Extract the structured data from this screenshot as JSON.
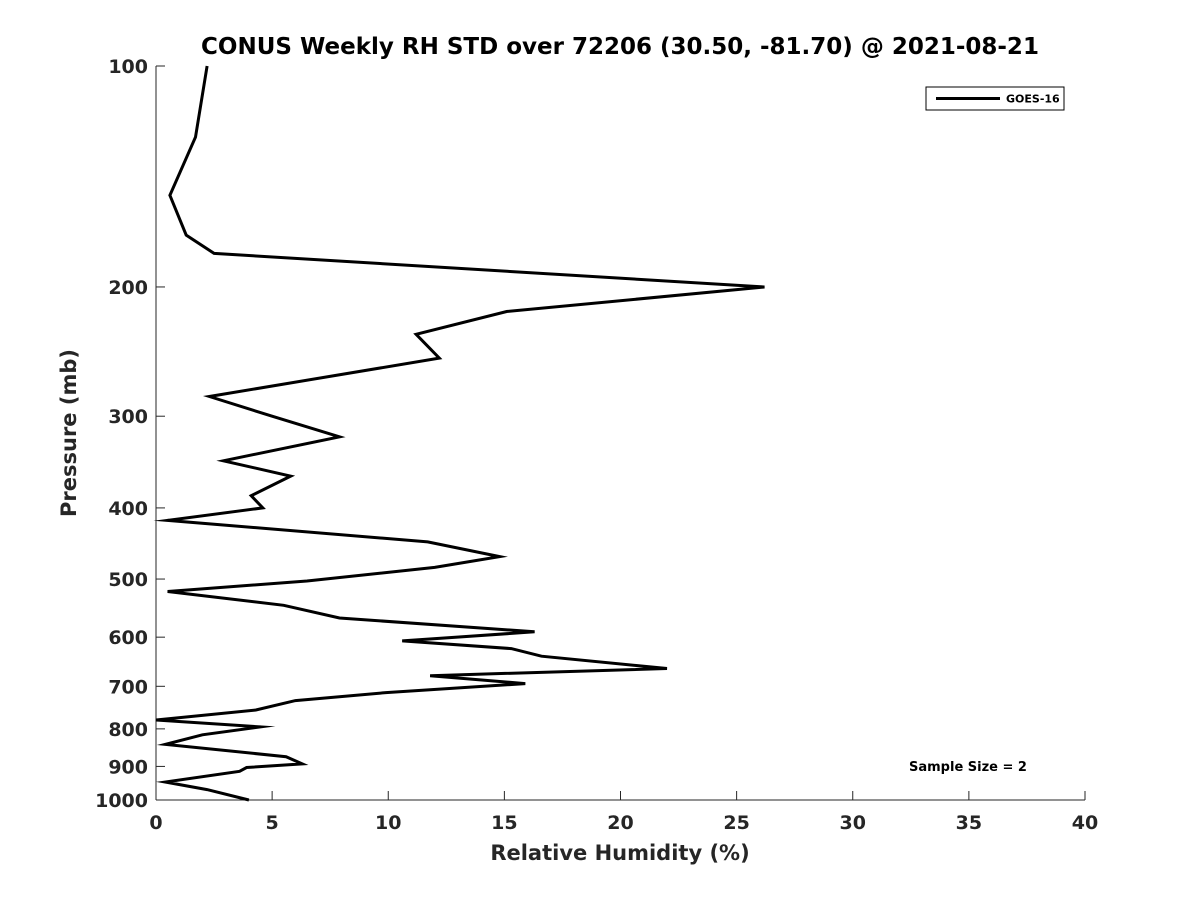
{
  "chart_data": {
    "type": "line",
    "title": "CONUS Weekly RH STD over 72206 (30.50, -81.70) @ 2021-08-21",
    "xlabel": "Relative Humidity (%)",
    "ylabel": "Pressure (mb)",
    "xlim": [
      0,
      40
    ],
    "ylim": [
      100,
      1000
    ],
    "yscale": "log",
    "y_reversed": true,
    "grid": false,
    "legend_position": "top-right",
    "x_ticks": [
      0,
      5,
      10,
      15,
      20,
      25,
      30,
      35,
      40
    ],
    "y_ticks": [
      100,
      200,
      300,
      400,
      500,
      600,
      700,
      800,
      900,
      1000
    ],
    "annotation": "Sample Size = 2",
    "series": [
      {
        "name": "GOES-16",
        "color": "#000000",
        "points": [
          [
            2.2,
            100
          ],
          [
            1.7,
            125
          ],
          [
            0.6,
            150
          ],
          [
            1.3,
            170
          ],
          [
            2.5,
            180
          ],
          [
            26.2,
            200
          ],
          [
            15.1,
            216
          ],
          [
            11.2,
            232
          ],
          [
            12.2,
            250
          ],
          [
            2.3,
            282
          ],
          [
            5.0,
            300
          ],
          [
            7.9,
            320
          ],
          [
            2.9,
            345
          ],
          [
            5.8,
            362
          ],
          [
            4.1,
            385
          ],
          [
            4.6,
            400
          ],
          [
            0.5,
            416
          ],
          [
            11.7,
            445
          ],
          [
            14.8,
            466
          ],
          [
            12.0,
            482
          ],
          [
            6.5,
            503
          ],
          [
            0.5,
            520
          ],
          [
            5.5,
            543
          ],
          [
            7.9,
            565
          ],
          [
            16.3,
            590
          ],
          [
            10.6,
            607
          ],
          [
            15.3,
            622
          ],
          [
            16.6,
            637
          ],
          [
            22.0,
            662
          ],
          [
            11.8,
            677
          ],
          [
            15.9,
            694
          ],
          [
            9.9,
            714
          ],
          [
            6.0,
            732
          ],
          [
            4.3,
            754
          ],
          [
            0.0,
            778
          ],
          [
            4.5,
            795
          ],
          [
            2.0,
            815
          ],
          [
            0.4,
            840
          ],
          [
            5.6,
            873
          ],
          [
            6.3,
            893
          ],
          [
            3.9,
            903
          ],
          [
            3.6,
            914
          ],
          [
            0.4,
            945
          ],
          [
            2.2,
            968
          ],
          [
            4.0,
            1000
          ]
        ]
      }
    ]
  }
}
